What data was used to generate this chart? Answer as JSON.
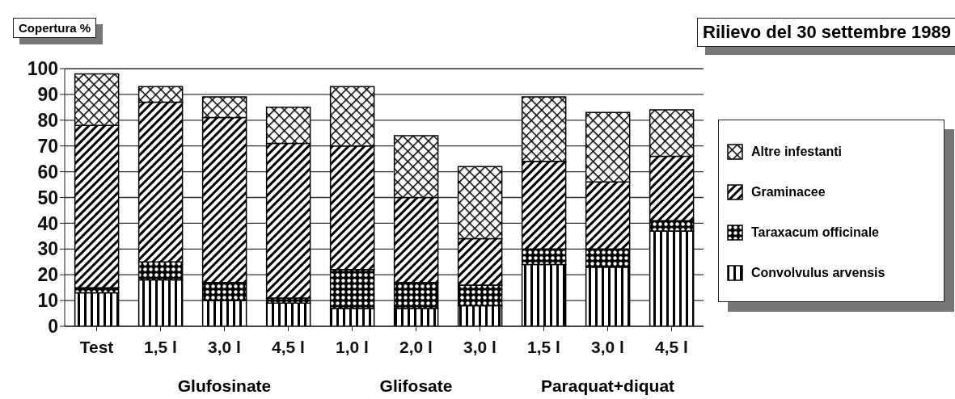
{
  "chart_data": {
    "type": "bar",
    "stacked": true,
    "title": "Rilievo del 30 settembre 1989",
    "ylabel": "Copertura %",
    "categories": [
      "Test",
      "1,5 l",
      "3,0 l",
      "4,5 l",
      "1,0 l",
      "2,0 l",
      "3,0 l",
      "1,5 l",
      "3,0 l",
      "4,5 l"
    ],
    "series": [
      {
        "name": "Convolvulus arvensis",
        "color": "#000000",
        "values": [
          13,
          18,
          10,
          9,
          7,
          7,
          8,
          24,
          23,
          37
        ]
      },
      {
        "name": "Taraxacum officinale",
        "color": "#000000",
        "values": [
          2,
          7,
          7,
          2,
          15,
          10,
          8,
          6,
          7,
          4
        ]
      },
      {
        "name": "Graminacee",
        "color": "#000000",
        "values": [
          63,
          62,
          64,
          60,
          48,
          33,
          18,
          34,
          26,
          25
        ]
      },
      {
        "name": "Altre infestanti",
        "color": "#000000",
        "values": [
          20,
          6,
          8,
          14,
          23,
          24,
          28,
          25,
          27,
          18
        ]
      }
    ],
    "ylim": [
      0,
      100
    ],
    "yticks": [
      0,
      10,
      20,
      30,
      40,
      50,
      60,
      70,
      80,
      90,
      100
    ],
    "grid": "y",
    "legend": "right",
    "annotations": [
      "Glufosinate",
      "Glifosate",
      "Paraquat+diquat"
    ]
  }
}
